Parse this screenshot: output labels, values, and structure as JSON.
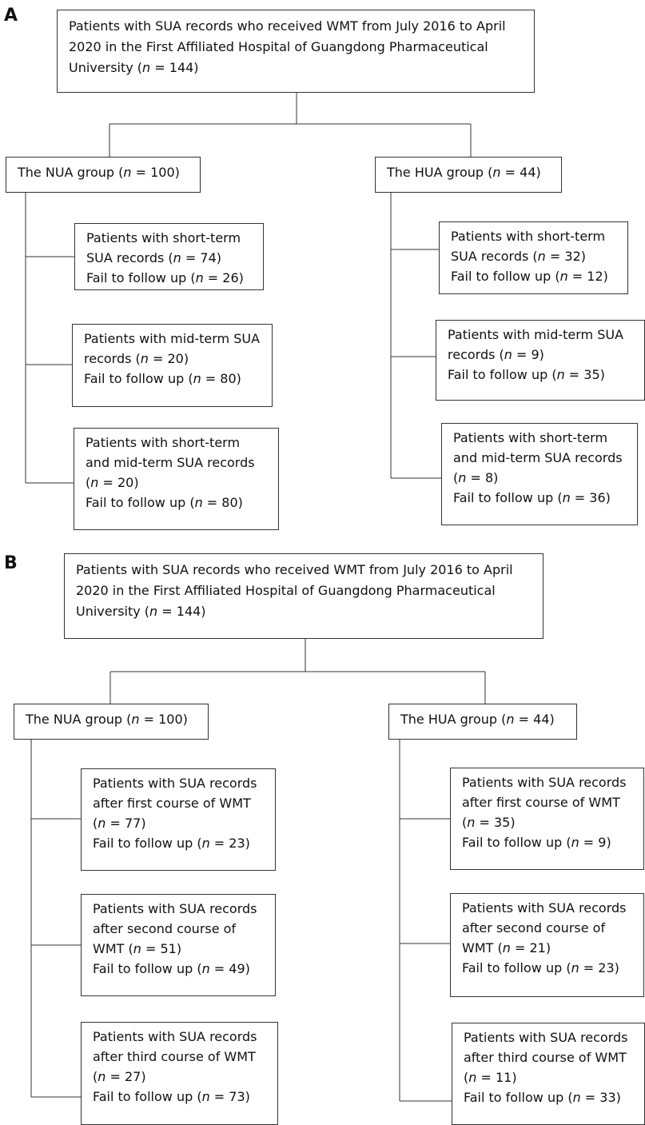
{
  "panel_a": {
    "label": "A",
    "top_box": {
      "lines": [
        "Patients with SUA records who received WMT from July 2016 to April",
        "2020 in the First Affiliated Hospital of Guangdong Pharmaceutical",
        "University (n = 144)"
      ]
    },
    "nua_group": "The NUA group (n = 100)",
    "hua_group": "The HUA group (n = 44)",
    "nua_children": [
      {
        "lines": [
          "Patients with short-term",
          "SUA records (n = 74)",
          "Fail to follow up (n = 26)"
        ]
      },
      {
        "lines": [
          "Patients with mid-term SUA",
          "records (n = 20)",
          "Fail to follow up (n = 80)"
        ]
      },
      {
        "lines": [
          "Patients with short-term",
          "and mid-term SUA records",
          "(n = 20)",
          "Fail to follow up (n = 80)"
        ]
      }
    ],
    "hua_children": [
      {
        "lines": [
          "Patients with short-term",
          "SUA records (n = 32)",
          "Fail to follow up (n = 12)"
        ]
      },
      {
        "lines": [
          "Patients with mid-term SUA",
          "records (n = 9)",
          "Fail to follow up (n = 35)"
        ]
      },
      {
        "lines": [
          "Patients with short-term",
          "and mid-term SUA records",
          "(n = 8)",
          "Fail to follow up (n = 36)"
        ]
      }
    ]
  },
  "panel_b": {
    "label": "B",
    "top_box": {
      "lines": [
        "Patients with SUA records who received WMT from July 2016 to April",
        "2020 in the First Affiliated Hospital of Guangdong Pharmaceutical",
        "University (n = 144)"
      ]
    },
    "nua_group": "The NUA group (n = 100)",
    "hua_group": "The HUA group (n = 44)",
    "nua_children": [
      {
        "lines": [
          "Patients with SUA records",
          "after first course of WMT",
          "(n = 77)",
          "Fail to follow up (n = 23)"
        ]
      },
      {
        "lines": [
          "Patients with SUA records",
          "after second course of",
          "WMT (n = 51)",
          "Fail to follow up (n = 49)"
        ]
      },
      {
        "lines": [
          "Patients with SUA records",
          "after third course of WMT",
          "(n = 27)",
          "Fail to follow up (n = 73)"
        ]
      }
    ],
    "hua_children": [
      {
        "lines": [
          "Patients with SUA records",
          "after first course of WMT",
          "(n = 35)",
          "Fail to follow up (n = 9)"
        ]
      },
      {
        "lines": [
          "Patients with SUA records",
          "after second course of",
          "WMT (n = 21)",
          "Fail to follow up (n = 23)"
        ]
      },
      {
        "lines": [
          "Patients with SUA records",
          "after third course of WMT",
          "(n = 11)",
          "Fail to follow up (n = 33)"
        ]
      }
    ]
  }
}
